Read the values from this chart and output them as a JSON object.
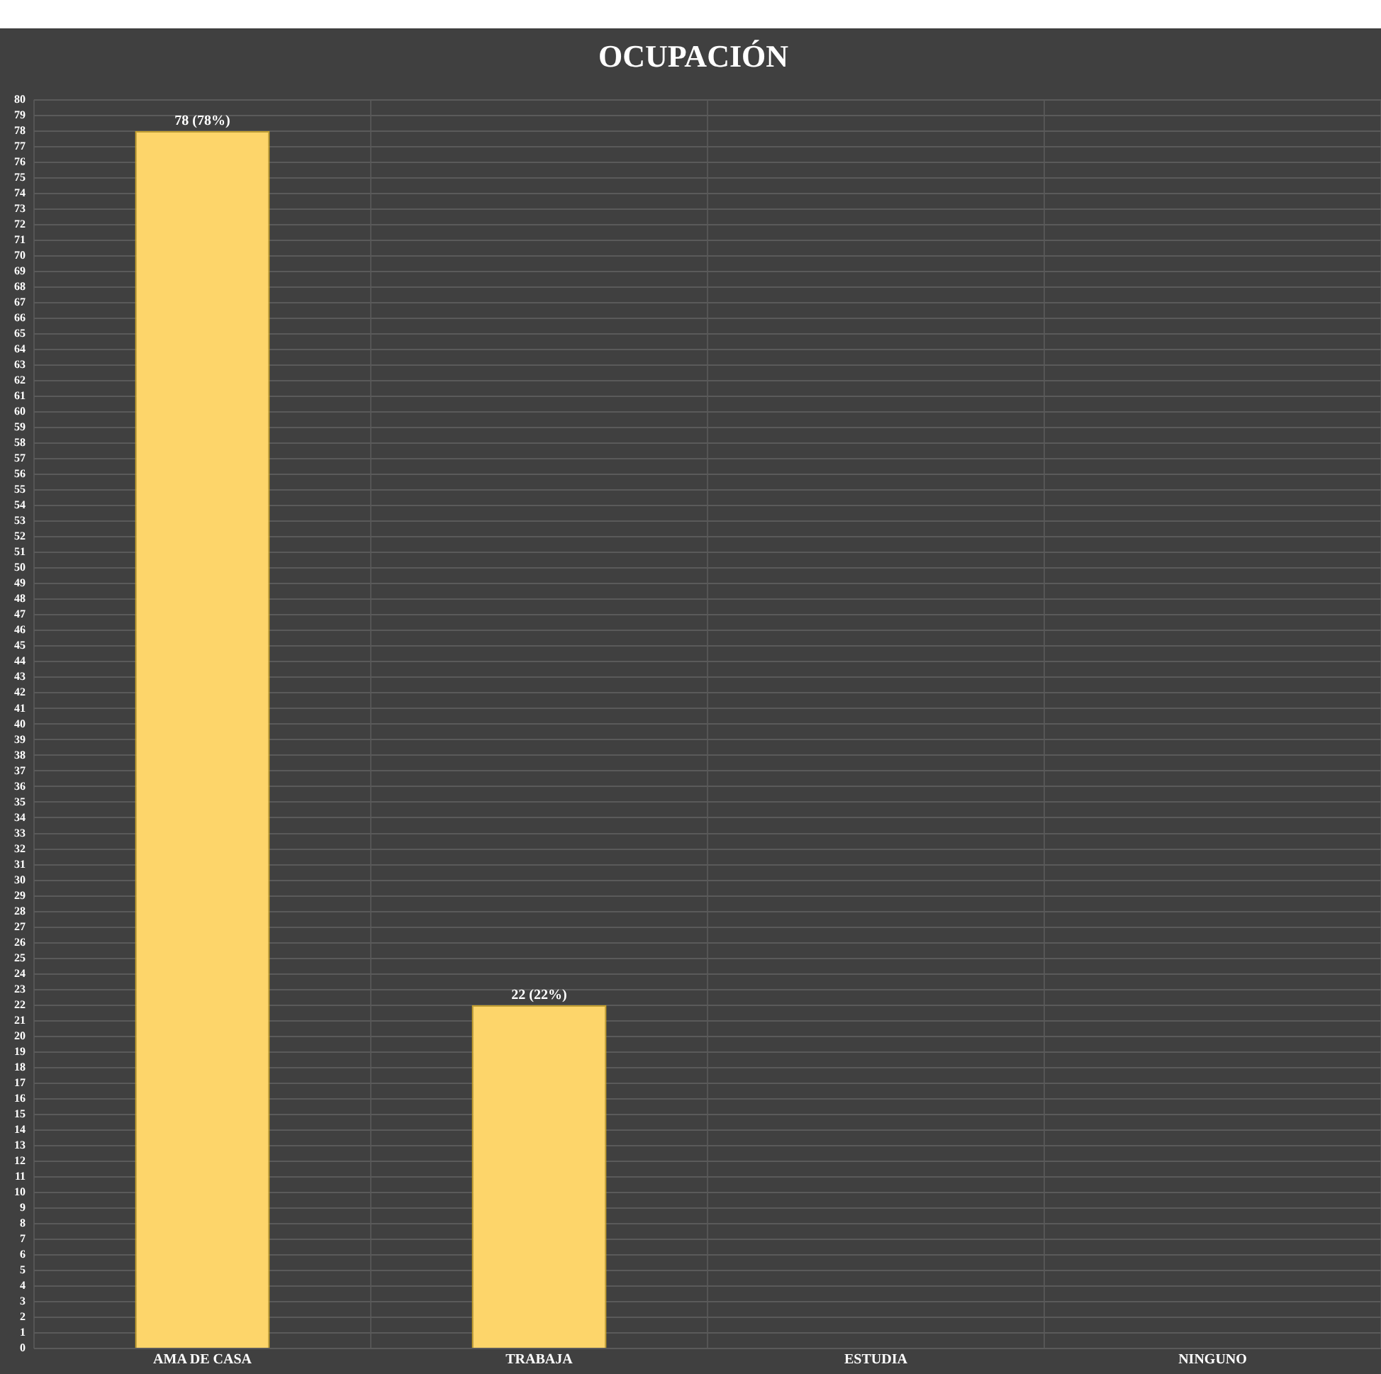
{
  "chart_data": {
    "type": "bar",
    "title": "OCUPACIÓN",
    "categories": [
      "AMA DE CASA",
      "TRABAJA",
      "ESTUDIA",
      "NINGUNO"
    ],
    "values": [
      78,
      22,
      0,
      0
    ],
    "value_labels": [
      "78 (78%)",
      "22 (22%)",
      null,
      null
    ],
    "color": "#fdd56a",
    "ylim": [
      0,
      80
    ],
    "yticks": [
      0,
      1,
      2,
      3,
      4,
      5,
      6,
      7,
      8,
      9,
      10,
      11,
      12,
      13,
      14,
      15,
      16,
      17,
      18,
      19,
      20,
      21,
      22,
      23,
      24,
      25,
      26,
      27,
      28,
      29,
      30,
      31,
      32,
      33,
      34,
      35,
      36,
      37,
      38,
      39,
      40,
      41,
      42,
      43,
      44,
      45,
      46,
      47,
      48,
      49,
      50,
      51,
      52,
      53,
      54,
      55,
      56,
      57,
      58,
      59,
      60,
      61,
      62,
      63,
      64,
      65,
      66,
      67,
      68,
      69,
      70,
      71,
      72,
      73,
      74,
      75,
      76,
      77,
      78,
      79,
      80
    ],
    "grid": true,
    "legend": false
  }
}
